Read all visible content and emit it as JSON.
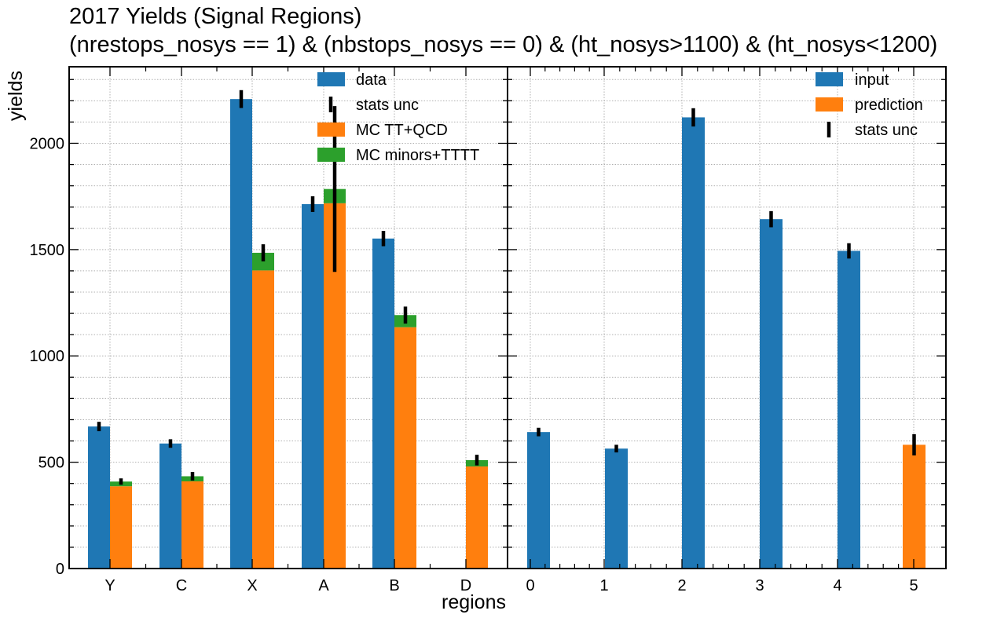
{
  "chart_data": [
    {
      "type": "bar",
      "title": "2017 Yields (Signal Regions)",
      "subtitle": "(nrestops_nosys == 1) & (nbstops_nosys == 0) & (ht_nosys>1100) & (ht_nosys<1200)",
      "xlabel": "regions",
      "ylabel": "yields",
      "ylim": [
        0,
        2360
      ],
      "grid": true,
      "legend_position": "top-right",
      "categories": [
        "Y",
        "C",
        "X",
        "A",
        "B",
        "D"
      ],
      "series": [
        {
          "name": "data",
          "color": "#1f77b4",
          "values": [
            668,
            588,
            2208,
            1714,
            1552,
            null
          ],
          "errors": [
            22,
            20,
            42,
            37,
            36,
            null
          ]
        },
        {
          "name": "MC TT+QCD",
          "color": "#ff7f0e",
          "values": [
            387,
            410,
            1402,
            1718,
            1135,
            480
          ],
          "stacked": true
        },
        {
          "name": "MC minors+TTTT",
          "color": "#2ca02c",
          "values": [
            22,
            24,
            83,
            67,
            57,
            30
          ],
          "stacked": true
        }
      ],
      "mc_errors": [
        15,
        20,
        40,
        390,
        40,
        25
      ],
      "error_label": "stats unc"
    },
    {
      "type": "bar",
      "categories": [
        "0",
        "1",
        "2",
        "3",
        "4",
        "5"
      ],
      "ylim": [
        0,
        2360
      ],
      "grid": true,
      "legend_position": "top-right",
      "series": [
        {
          "name": "input",
          "color": "#1f77b4",
          "values": [
            642,
            564,
            2122,
            1643,
            1494,
            null
          ],
          "errors": [
            20,
            18,
            43,
            38,
            36,
            null
          ]
        },
        {
          "name": "prediction",
          "color": "#ff7f0e",
          "values": [
            null,
            null,
            null,
            null,
            null,
            582
          ],
          "errors": [
            null,
            null,
            null,
            null,
            null,
            50
          ]
        }
      ],
      "error_label": "stats unc"
    }
  ],
  "yticks": [
    0,
    500,
    1000,
    1500,
    2000
  ]
}
